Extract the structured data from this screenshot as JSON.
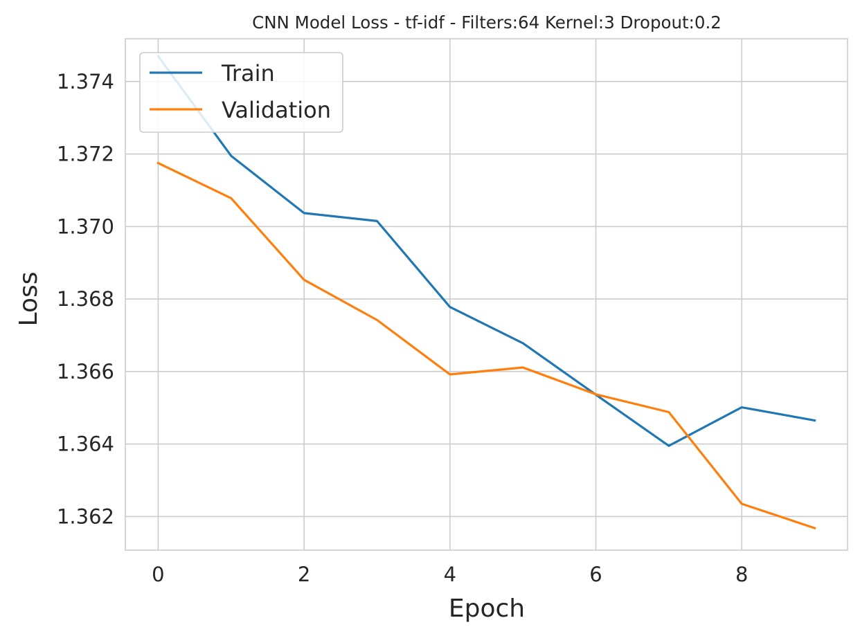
{
  "chart_data": {
    "type": "line",
    "title": "CNN Model Loss - tf-idf - Filters:64 Kernel:3 Dropout:0.2",
    "xlabel": "Epoch",
    "ylabel": "Loss",
    "x": [
      0,
      1,
      2,
      3,
      4,
      5,
      6,
      7,
      8,
      9
    ],
    "xlim": [
      -0.45,
      9.45
    ],
    "ylim": [
      1.36107,
      1.37518
    ],
    "xticks": [
      0,
      2,
      4,
      6,
      8
    ],
    "yticks": [
      1.362,
      1.364,
      1.366,
      1.368,
      1.37,
      1.372,
      1.374
    ],
    "xtick_labels": [
      "0",
      "2",
      "4",
      "6",
      "8"
    ],
    "ytick_labels": [
      "1.362",
      "1.364",
      "1.366",
      "1.368",
      "1.370",
      "1.372",
      "1.374"
    ],
    "grid": true,
    "legend_position": "upper-left",
    "series": [
      {
        "name": "Train",
        "color": "#1f77b4",
        "values": [
          1.3747,
          1.37195,
          1.37037,
          1.37015,
          1.36778,
          1.36678,
          1.36536,
          1.36395,
          1.36501,
          1.36465
        ]
      },
      {
        "name": "Validation",
        "color": "#ff7f0e",
        "values": [
          1.37175,
          1.37078,
          1.36853,
          1.36742,
          1.36592,
          1.36611,
          1.36537,
          1.36488,
          1.36235,
          1.36168
        ]
      }
    ]
  }
}
